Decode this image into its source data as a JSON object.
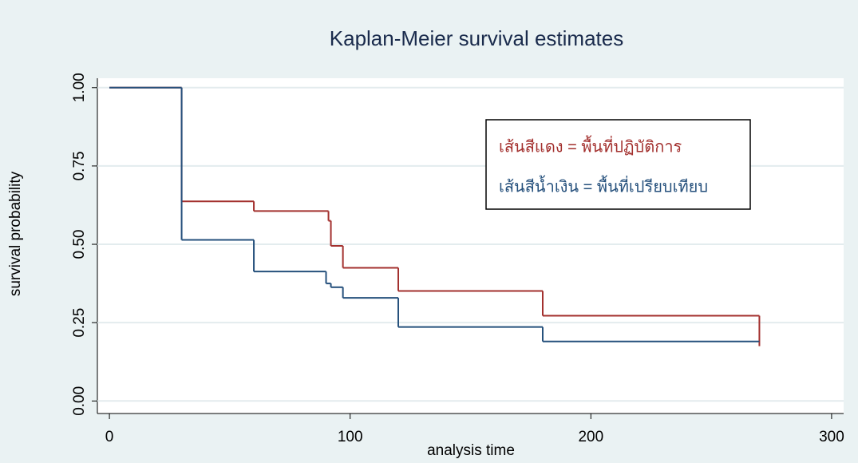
{
  "chart_data": {
    "type": "step",
    "title": "Kaplan-Meier survival estimates",
    "xlabel": "analysis time",
    "ylabel": "survival probability",
    "xlim": [
      -5,
      305
    ],
    "ylim": [
      -0.04,
      1.03
    ],
    "xticks": [
      0,
      100,
      200,
      300
    ],
    "yticks": [
      {
        "value": 0,
        "label": "0.00"
      },
      {
        "value": 0.25,
        "label": "0.25"
      },
      {
        "value": 0.5,
        "label": "0.50"
      },
      {
        "value": 0.75,
        "label": "0.75"
      },
      {
        "value": 1,
        "label": "1.00"
      }
    ],
    "grid": true,
    "legend": "upper right",
    "series": [
      {
        "name": "เส้นสีแดง = พื้นที่ปฏิบัติการ",
        "color": "#a3302e",
        "x": [
          0,
          30,
          60,
          91,
          92,
          97,
          120,
          180,
          270
        ],
        "values": [
          1,
          0.637,
          0.606,
          0.575,
          0.495,
          0.425,
          0.351,
          0.272,
          0.175
        ]
      },
      {
        "name": "เส้นสีน้ำเงิน = พื้นที่เปรียบเทียบ",
        "color": "#25507c",
        "x": [
          0,
          30,
          60,
          90,
          92,
          97,
          120,
          180,
          270
        ],
        "values": [
          1,
          0.514,
          0.413,
          0.375,
          0.363,
          0.329,
          0.236,
          0.19,
          0.19
        ]
      }
    ]
  }
}
